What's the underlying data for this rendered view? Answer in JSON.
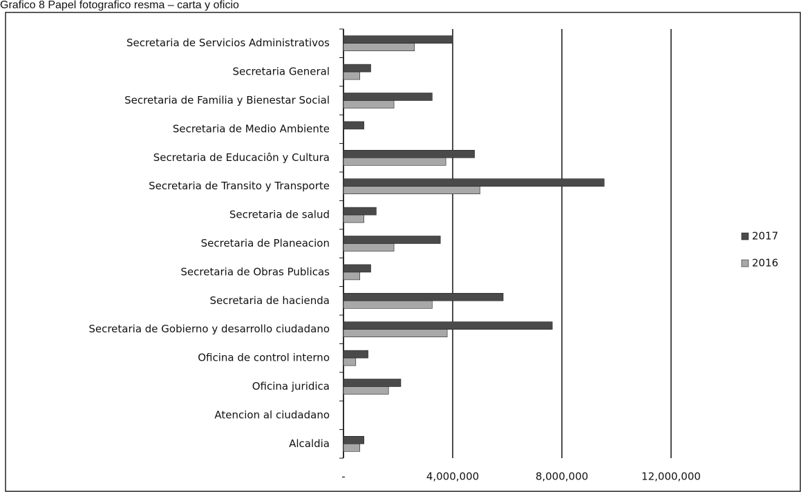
{
  "chart_data": {
    "type": "bar",
    "orientation": "horizontal",
    "title": "Grafico 8 Papel fotografico resma – carta y oficio",
    "categories": [
      "Secretaria de Servicios Administrativos",
      "Secretaria General",
      "Secretaria de Familia y Bienestar Social",
      "Secretaria de Medio Ambiente",
      "Secretaria de Educaciôn y Cultura",
      "Secretaria de Transito y Transporte",
      "Secretaria de salud",
      "Secretaria de Planeacion",
      "Secretaria de Obras Publicas",
      "Secretaria de hacienda",
      "Secretaria de Gobierno y desarrollo ciudadano",
      "Oficina de control interno",
      "Oficina juridica",
      "Atencion al ciudadano",
      "Alcaldia"
    ],
    "series": [
      {
        "name": "2017",
        "color": "#4a4a4a",
        "values": [
          4000000,
          1000000,
          3250000,
          750000,
          4800000,
          9550000,
          1200000,
          3550000,
          1000000,
          5850000,
          7650000,
          900000,
          2100000,
          0,
          750000
        ]
      },
      {
        "name": "2016",
        "color": "#a8a8a8",
        "values": [
          2600000,
          600000,
          1850000,
          0,
          3750000,
          5000000,
          750000,
          1850000,
          600000,
          3250000,
          3800000,
          450000,
          1650000,
          0,
          600000
        ]
      }
    ],
    "xlim": [
      0,
      12000000
    ],
    "xticks": [
      {
        "value": 0,
        "label": "-"
      },
      {
        "value": 4000000,
        "label": "4,000,000"
      },
      {
        "value": 8000000,
        "label": "8,000,000"
      },
      {
        "value": 12000000,
        "label": "12,000,000"
      }
    ],
    "grid": true,
    "legend": "right"
  }
}
